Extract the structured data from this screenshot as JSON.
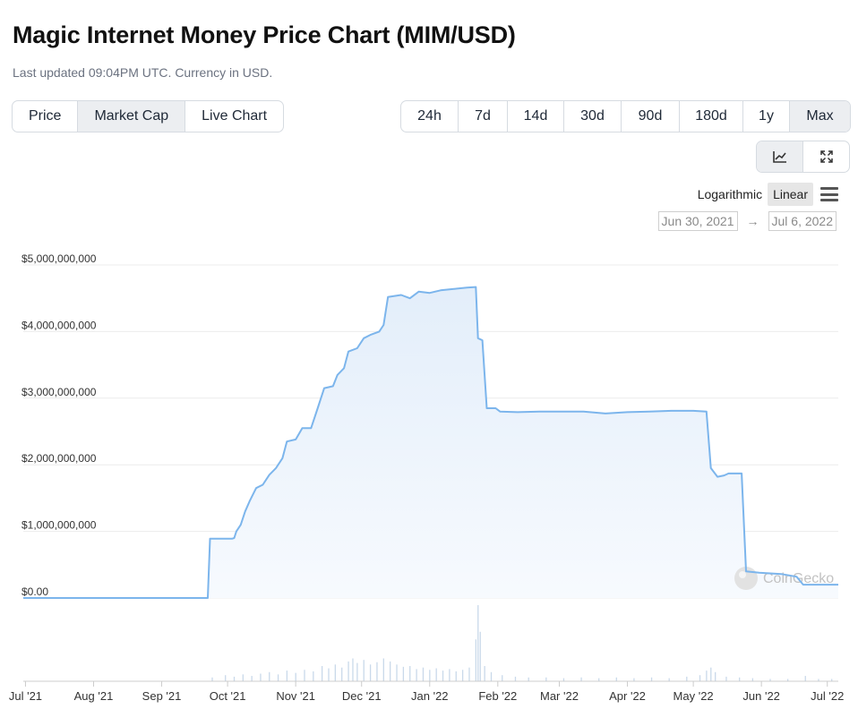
{
  "header": {
    "title": "Magic Internet Money Price Chart (MIM/USD)",
    "subtitle": "Last updated 09:04PM UTC. Currency in USD."
  },
  "view_tabs": [
    {
      "label": "Price",
      "active": false
    },
    {
      "label": "Market Cap",
      "active": true
    },
    {
      "label": "Live Chart",
      "active": false
    }
  ],
  "range_tabs": [
    {
      "label": "24h",
      "active": false
    },
    {
      "label": "7d",
      "active": false
    },
    {
      "label": "14d",
      "active": false
    },
    {
      "label": "30d",
      "active": false
    },
    {
      "label": "90d",
      "active": false
    },
    {
      "label": "180d",
      "active": false
    },
    {
      "label": "1y",
      "active": false
    },
    {
      "label": "Max",
      "active": true
    }
  ],
  "tools": [
    {
      "icon": "line-chart-icon",
      "active": true
    },
    {
      "icon": "fullscreen-icon",
      "active": false
    }
  ],
  "scale": {
    "log_label": "Logarithmic",
    "linear_label": "Linear",
    "selected": "Linear"
  },
  "date_range": {
    "from": "Jun 30, 2021",
    "arrow": "→",
    "to": "Jul 6, 2022"
  },
  "watermark": "CoinGecko",
  "colors": {
    "line": "#7cb5ec",
    "area_top": "#e8f1fb",
    "volume": "#c9d9ea",
    "grid": "#ececec",
    "active_tab": "#eceef1"
  },
  "chart_data": {
    "type": "area",
    "title": "",
    "ylabel": "",
    "xlabel": "",
    "ylim": [
      0,
      5000000000
    ],
    "y_ticks": [
      "$0.00",
      "$1,000,000,000",
      "$2,000,000,000",
      "$3,000,000,000",
      "$4,000,000,000",
      "$5,000,000,000"
    ],
    "x_ticks": [
      {
        "label": "Jul '21",
        "day": 1
      },
      {
        "label": "Aug '21",
        "day": 32
      },
      {
        "label": "Sep '21",
        "day": 63
      },
      {
        "label": "Oct '21",
        "day": 93
      },
      {
        "label": "Nov '21",
        "day": 124
      },
      {
        "label": "Dec '21",
        "day": 154
      },
      {
        "label": "Jan '22",
        "day": 185
      },
      {
        "label": "Feb '22",
        "day": 216
      },
      {
        "label": "Mar '22",
        "day": 244
      },
      {
        "label": "Apr '22",
        "day": 275
      },
      {
        "label": "May '22",
        "day": 305
      },
      {
        "label": "Jun '22",
        "day": 336
      },
      {
        "label": "Jul '22",
        "day": 366
      }
    ],
    "x_domain": [
      0,
      371
    ],
    "grid": true,
    "series": [
      {
        "values": [
          [
            0,
            0
          ],
          [
            84,
            0
          ],
          [
            85,
            890000000
          ],
          [
            95,
            890000000
          ],
          [
            96,
            900000000
          ],
          [
            97,
            1000000000
          ],
          [
            99,
            1100000000
          ],
          [
            101,
            1300000000
          ],
          [
            103,
            1450000000
          ],
          [
            106,
            1650000000
          ],
          [
            109,
            1700000000
          ],
          [
            112,
            1850000000
          ],
          [
            115,
            1950000000
          ],
          [
            118,
            2100000000
          ],
          [
            120,
            2350000000
          ],
          [
            124,
            2380000000
          ],
          [
            127,
            2550000000
          ],
          [
            131,
            2550000000
          ],
          [
            134,
            2850000000
          ],
          [
            137,
            3150000000
          ],
          [
            141,
            3180000000
          ],
          [
            143,
            3350000000
          ],
          [
            146,
            3450000000
          ],
          [
            148,
            3700000000
          ],
          [
            152,
            3750000000
          ],
          [
            155,
            3900000000
          ],
          [
            158,
            3950000000
          ],
          [
            162,
            4000000000
          ],
          [
            164,
            4100000000
          ],
          [
            166,
            4520000000
          ],
          [
            172,
            4550000000
          ],
          [
            176,
            4500000000
          ],
          [
            180,
            4600000000
          ],
          [
            185,
            4580000000
          ],
          [
            190,
            4620000000
          ],
          [
            196,
            4640000000
          ],
          [
            202,
            4660000000
          ],
          [
            206,
            4670000000
          ],
          [
            207,
            3900000000
          ],
          [
            209,
            3870000000
          ],
          [
            211,
            2850000000
          ],
          [
            215,
            2850000000
          ],
          [
            217,
            2800000000
          ],
          [
            225,
            2790000000
          ],
          [
            235,
            2800000000
          ],
          [
            245,
            2800000000
          ],
          [
            255,
            2800000000
          ],
          [
            265,
            2770000000
          ],
          [
            275,
            2790000000
          ],
          [
            285,
            2800000000
          ],
          [
            295,
            2810000000
          ],
          [
            305,
            2810000000
          ],
          [
            311,
            2800000000
          ],
          [
            313,
            1950000000
          ],
          [
            316,
            1820000000
          ],
          [
            319,
            1840000000
          ],
          [
            321,
            1870000000
          ],
          [
            327,
            1870000000
          ],
          [
            329,
            400000000
          ],
          [
            335,
            380000000
          ],
          [
            345,
            360000000
          ],
          [
            352,
            320000000
          ],
          [
            355,
            200000000
          ],
          [
            371,
            200000000
          ]
        ]
      }
    ],
    "volume": [
      [
        86,
        0.05
      ],
      [
        92,
        0.08
      ],
      [
        96,
        0.06
      ],
      [
        100,
        0.09
      ],
      [
        104,
        0.07
      ],
      [
        108,
        0.1
      ],
      [
        112,
        0.12
      ],
      [
        116,
        0.09
      ],
      [
        120,
        0.14
      ],
      [
        124,
        0.11
      ],
      [
        128,
        0.15
      ],
      [
        132,
        0.13
      ],
      [
        136,
        0.2
      ],
      [
        139,
        0.17
      ],
      [
        142,
        0.22
      ],
      [
        145,
        0.18
      ],
      [
        148,
        0.26
      ],
      [
        150,
        0.3
      ],
      [
        152,
        0.24
      ],
      [
        155,
        0.28
      ],
      [
        158,
        0.22
      ],
      [
        161,
        0.25
      ],
      [
        164,
        0.3
      ],
      [
        167,
        0.26
      ],
      [
        170,
        0.22
      ],
      [
        173,
        0.19
      ],
      [
        176,
        0.2
      ],
      [
        179,
        0.16
      ],
      [
        182,
        0.18
      ],
      [
        185,
        0.15
      ],
      [
        188,
        0.17
      ],
      [
        191,
        0.14
      ],
      [
        194,
        0.16
      ],
      [
        197,
        0.13
      ],
      [
        200,
        0.15
      ],
      [
        203,
        0.18
      ],
      [
        206,
        0.55
      ],
      [
        207,
        1.0
      ],
      [
        208,
        0.65
      ],
      [
        210,
        0.2
      ],
      [
        213,
        0.12
      ],
      [
        218,
        0.08
      ],
      [
        224,
        0.06
      ],
      [
        230,
        0.05
      ],
      [
        238,
        0.05
      ],
      [
        246,
        0.04
      ],
      [
        254,
        0.05
      ],
      [
        262,
        0.04
      ],
      [
        270,
        0.05
      ],
      [
        278,
        0.04
      ],
      [
        286,
        0.05
      ],
      [
        294,
        0.04
      ],
      [
        302,
        0.06
      ],
      [
        308,
        0.08
      ],
      [
        311,
        0.14
      ],
      [
        313,
        0.18
      ],
      [
        315,
        0.12
      ],
      [
        320,
        0.06
      ],
      [
        326,
        0.05
      ],
      [
        332,
        0.04
      ],
      [
        340,
        0.03
      ],
      [
        348,
        0.03
      ],
      [
        356,
        0.07
      ],
      [
        362,
        0.03
      ],
      [
        368,
        0.03
      ]
    ]
  }
}
